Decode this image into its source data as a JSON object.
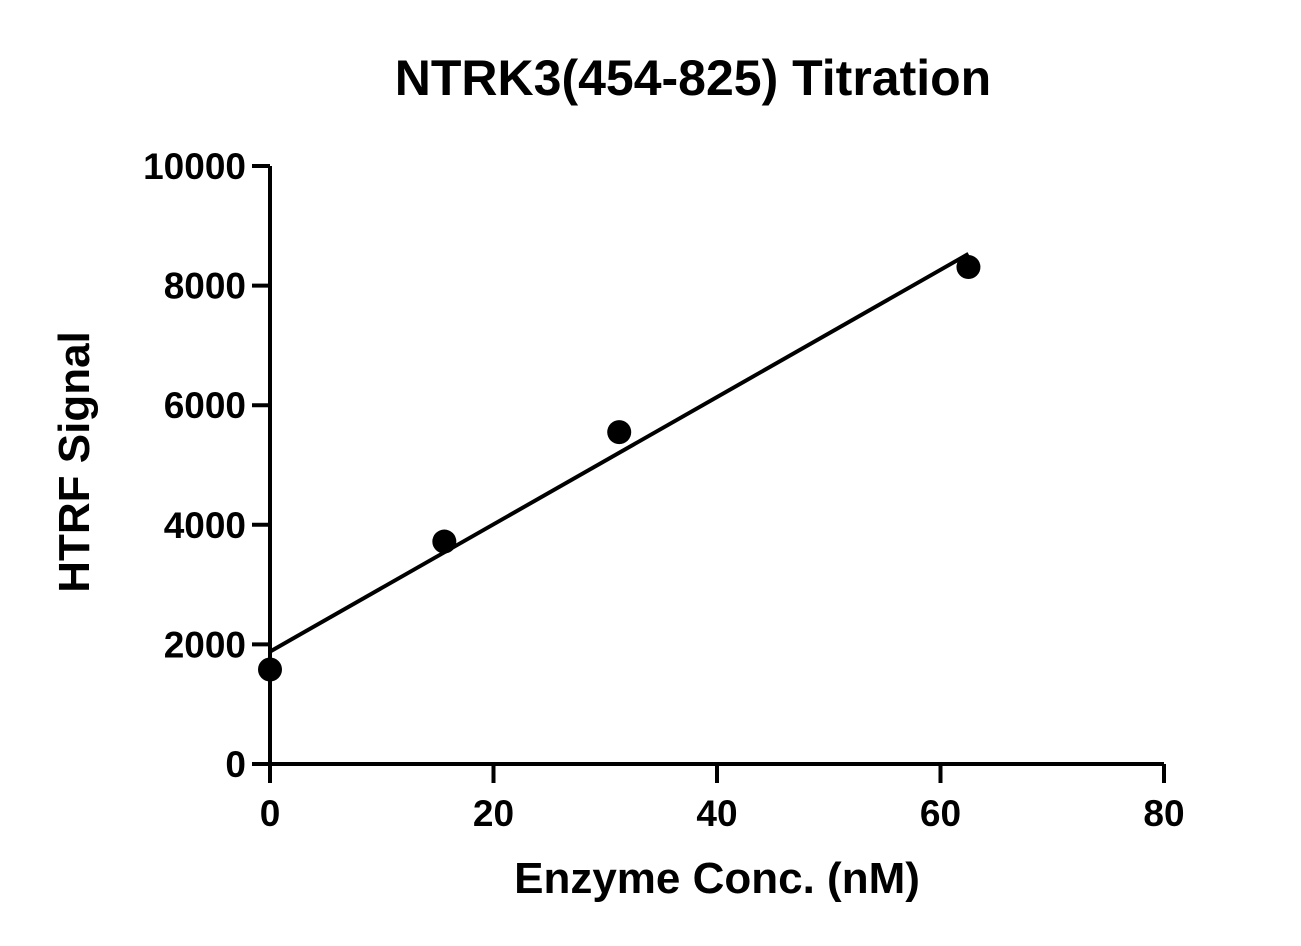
{
  "chart_data": {
    "type": "scatter",
    "title": "NTRK3(454-825) Titration",
    "xlabel": "Enzyme Conc. (nM)",
    "ylabel": "HTRF Signal",
    "xlim": [
      0,
      80
    ],
    "ylim": [
      0,
      10000
    ],
    "xticks": [
      "0",
      "20",
      "40",
      "60",
      "80"
    ],
    "yticks": [
      "0",
      "2000",
      "4000",
      "6000",
      "8000",
      "10000"
    ],
    "grid": false,
    "series": [
      {
        "points": [
          {
            "x": 0,
            "y": 1580
          },
          {
            "x": 15.6,
            "y": 3720
          },
          {
            "x": 31.25,
            "y": 5550
          },
          {
            "x": 62.5,
            "y": 8310
          }
        ],
        "fit": {
          "type": "linear",
          "x": [
            0,
            62.5
          ],
          "y": [
            1880,
            8530
          ]
        },
        "color": "#000000"
      }
    ]
  }
}
